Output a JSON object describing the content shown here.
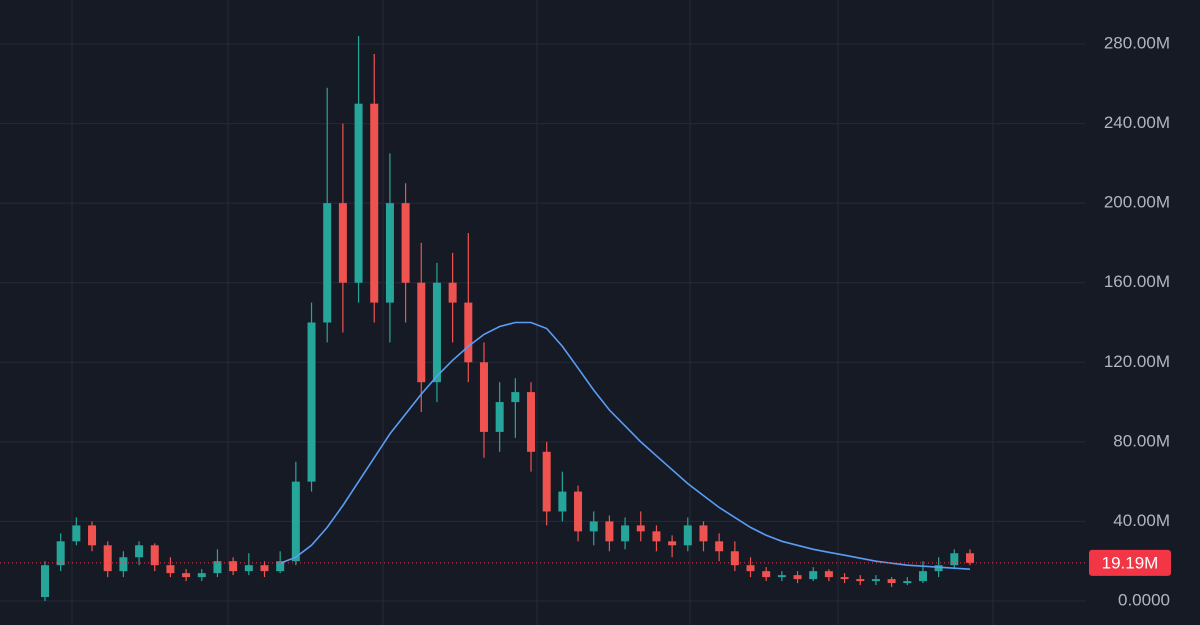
{
  "chart_data": {
    "type": "candlestick",
    "open": [
      2000000.0,
      18000000.0,
      30000000.0,
      38000000.0,
      28000000.0,
      15000000.0,
      22000000.0,
      28000000.0,
      18000000.0,
      14000000.0,
      12000000.0,
      14000000.0,
      20000000.0,
      15000000.0,
      18000000.0,
      15000000.0,
      20000000.0,
      60000000.0,
      140000000.0,
      200000000.0,
      160000000.0,
      250000000.0,
      150000000.0,
      200000000.0,
      160000000.0,
      110000000.0,
      160000000.0,
      150000000.0,
      120000000.0,
      85000000.0,
      100000000.0,
      105000000.0,
      75000000.0,
      45000000.0,
      55000000.0,
      35000000.0,
      40000000.0,
      30000000.0,
      38000000.0,
      35000000.0,
      30000000.0,
      28000000.0,
      38000000.0,
      30000000.0,
      25000000.0,
      18000000.0,
      15000000.0,
      12000000.0,
      13000000.0,
      11000000.0,
      15000000.0,
      12000000.0,
      11000000.0,
      10000000.0,
      11000000.0,
      9000000.0,
      10000000.0,
      15000000.0,
      18000000.0,
      24000000.0
    ],
    "high": [
      20000000.0,
      34000000.0,
      42000000.0,
      40000000.0,
      30000000.0,
      25000000.0,
      30000000.0,
      29000000.0,
      22000000.0,
      16000000.0,
      16000000.0,
      26000000.0,
      22000000.0,
      24000000.0,
      20000000.0,
      25000000.0,
      70000000.0,
      150000000.0,
      258000000.0,
      240000000.0,
      284000000.0,
      275000000.0,
      225000000.0,
      210000000.0,
      180000000.0,
      170000000.0,
      175000000.0,
      185000000.0,
      130000000.0,
      110000000.0,
      112000000.0,
      110000000.0,
      80000000.0,
      65000000.0,
      58000000.0,
      45000000.0,
      43000000.0,
      42000000.0,
      45000000.0,
      38000000.0,
      33000000.0,
      42000000.0,
      40000000.0,
      34000000.0,
      30000000.0,
      22000000.0,
      17000000.0,
      15000000.0,
      15000000.0,
      17000000.0,
      16000000.0,
      14000000.0,
      13000000.0,
      13000000.0,
      12000000.0,
      12000000.0,
      20000000.0,
      22000000.0,
      26000000.0,
      26000000.0
    ],
    "low": [
      0,
      15000000.0,
      28000000.0,
      25000000.0,
      12000000.0,
      12000000.0,
      18000000.0,
      15000000.0,
      12000000.0,
      10000000.0,
      10000000.0,
      12000000.0,
      13000000.0,
      13000000.0,
      12000000.0,
      14000000.0,
      18000000.0,
      55000000.0,
      130000000.0,
      135000000.0,
      150000000.0,
      140000000.0,
      130000000.0,
      140000000.0,
      95000000.0,
      100000000.0,
      130000000.0,
      110000000.0,
      72000000.0,
      75000000.0,
      82000000.0,
      65000000.0,
      38000000.0,
      40000000.0,
      30000000.0,
      28000000.0,
      25000000.0,
      26000000.0,
      30000000.0,
      25000000.0,
      22000000.0,
      25000000.0,
      25000000.0,
      20000000.0,
      15000000.0,
      12000000.0,
      10000000.0,
      10000000.0,
      9000000.0,
      10000000.0,
      10000000.0,
      9000000.0,
      8000000.0,
      8000000.0,
      7000000.0,
      8000000.0,
      9000000.0,
      12000000.0,
      16000000.0,
      18000000.0
    ],
    "close": [
      18000000.0,
      30000000.0,
      38000000.0,
      28000000.0,
      15000000.0,
      22000000.0,
      28000000.0,
      18000000.0,
      14000000.0,
      12000000.0,
      14000000.0,
      20000000.0,
      15000000.0,
      18000000.0,
      15000000.0,
      20000000.0,
      60000000.0,
      140000000.0,
      200000000.0,
      160000000.0,
      250000000.0,
      150000000.0,
      200000000.0,
      160000000.0,
      110000000.0,
      160000000.0,
      150000000.0,
      120000000.0,
      85000000.0,
      100000000.0,
      105000000.0,
      75000000.0,
      45000000.0,
      55000000.0,
      35000000.0,
      40000000.0,
      30000000.0,
      38000000.0,
      35000000.0,
      30000000.0,
      28000000.0,
      38000000.0,
      30000000.0,
      25000000.0,
      18000000.0,
      15000000.0,
      12000000.0,
      13000000.0,
      11000000.0,
      15000000.0,
      12000000.0,
      11000000.0,
      10000000.0,
      11000000.0,
      9000000.0,
      10000000.0,
      15000000.0,
      18000000.0,
      24000000.0,
      19190000.0
    ],
    "up_color": "#26a69a",
    "down_color": "#ef5350",
    "moving_average": {
      "color": "#5b9cf6",
      "values": [
        null,
        null,
        null,
        null,
        null,
        null,
        null,
        null,
        null,
        null,
        null,
        null,
        null,
        null,
        null,
        19000000.0,
        22000000.0,
        28000000.0,
        37000000.0,
        48000000.0,
        60000000.0,
        72000000.0,
        84000000.0,
        94000000.0,
        104000000.0,
        113000000.0,
        121000000.0,
        128000000.0,
        134000000.0,
        138000000.0,
        140000000.0,
        140000000.0,
        137000000.0,
        128000000.0,
        117000000.0,
        106000000.0,
        96000000.0,
        88000000.0,
        80000000.0,
        73000000.0,
        66000000.0,
        59000000.0,
        53000000.0,
        47000000.0,
        42000000.0,
        37000000.0,
        33000000.0,
        30000000.0,
        28000000.0,
        26000000.0,
        24500000.0,
        23000000.0,
        21500000.0,
        20000000.0,
        19000000.0,
        18000000.0,
        17500000.0,
        17000000.0,
        16500000.0,
        16000000.0
      ]
    },
    "price_line": {
      "value": 19190000.0,
      "label": "19.19M",
      "color": "#f23645"
    },
    "ylim": [
      -12070000.0,
      302120000.0
    ],
    "yticks": [
      {
        "value": 0,
        "label": "0.0000"
      },
      {
        "value": 40000000.0,
        "label": "40.00M"
      },
      {
        "value": 80000000.0,
        "label": "80.00M"
      },
      {
        "value": 120000000.0,
        "label": "120.00M"
      },
      {
        "value": 160000000.0,
        "label": "160.00M"
      },
      {
        "value": 200000000.0,
        "label": "200.00M"
      },
      {
        "value": 240000000.0,
        "label": "240.00M"
      },
      {
        "value": 280000000.0,
        "label": "280.00M"
      }
    ],
    "grid": true
  }
}
